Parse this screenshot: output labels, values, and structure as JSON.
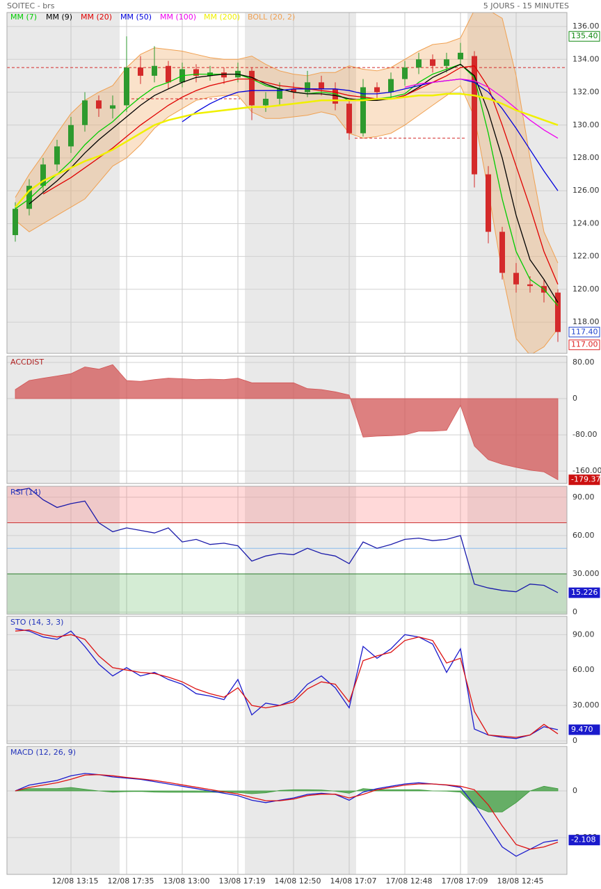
{
  "header": {
    "symbol": "SOITEC - brs",
    "period": "5 JOURS - 15 MINUTES"
  },
  "chart_data": [
    {
      "type": "candlestick",
      "categories": [
        null,
        null,
        null,
        null,
        "12/08 13:15",
        null,
        null,
        null,
        "12/08 17:35",
        null,
        null,
        null,
        "13/08 13:00",
        null,
        null,
        null,
        "13/08 17:19",
        null,
        null,
        null,
        "14/08 12:50",
        null,
        null,
        null,
        "14/08 17:07",
        null,
        null,
        null,
        "17/08 12:48",
        null,
        null,
        null,
        "17/08 17:09",
        null,
        null,
        null,
        "18/08 12:45",
        null,
        null,
        null
      ],
      "open": [
        123.3,
        124.9,
        126.3,
        127.6,
        128.7,
        130.0,
        131.5,
        131.0,
        131.2,
        133.5,
        133.0,
        133.6,
        132.6,
        133.4,
        133.0,
        133.2,
        132.9,
        133.3,
        131.2,
        131.6,
        132.2,
        132.0,
        132.6,
        132.2,
        131.3,
        129.5,
        132.3,
        132.0,
        132.8,
        133.5,
        134.0,
        133.6,
        134.0,
        134.2,
        127.0,
        123.5,
        121.0,
        120.3,
        120.2,
        119.8
      ],
      "high": [
        125.3,
        126.7,
        128.0,
        129.1,
        130.5,
        132.0,
        131.8,
        131.8,
        135.4,
        134.2,
        134.8,
        133.9,
        133.8,
        133.7,
        133.6,
        133.5,
        133.8,
        133.5,
        132.0,
        132.6,
        132.6,
        133.3,
        133.0,
        132.6,
        131.5,
        132.8,
        132.6,
        133.2,
        133.9,
        134.4,
        134.3,
        134.4,
        135.0,
        134.5,
        127.5,
        123.8,
        121.6,
        120.8,
        120.6,
        120.0
      ],
      "low": [
        122.9,
        124.5,
        125.9,
        127.2,
        128.3,
        129.6,
        130.5,
        130.4,
        130.8,
        132.5,
        132.6,
        132.2,
        132.3,
        132.6,
        132.7,
        132.5,
        132.6,
        130.3,
        130.8,
        131.2,
        131.6,
        131.7,
        131.8,
        130.9,
        129.1,
        129.3,
        131.5,
        131.6,
        132.4,
        133.1,
        133.2,
        133.2,
        133.6,
        126.2,
        122.8,
        120.6,
        119.8,
        119.8,
        119.2,
        116.8
      ],
      "close": [
        124.9,
        126.3,
        127.6,
        128.7,
        130.0,
        131.5,
        131.0,
        131.2,
        133.5,
        133.0,
        133.6,
        132.6,
        133.4,
        133.0,
        133.2,
        132.9,
        133.3,
        131.2,
        131.6,
        132.2,
        132.0,
        132.6,
        132.2,
        131.3,
        129.5,
        132.3,
        132.0,
        132.8,
        133.5,
        134.0,
        133.6,
        134.0,
        134.4,
        127.0,
        123.5,
        121.0,
        120.3,
        120.2,
        119.8,
        117.4
      ],
      "up_color": "#2e9a2e",
      "down_color": "#d42a2a",
      "bands": {
        "name": "BOLL (20, 2)",
        "color": "#f0a050",
        "upper": [
          125.6,
          127,
          128.2,
          129.5,
          130.7,
          131.5,
          132,
          132.4,
          133.5,
          134.3,
          134.7,
          134.6,
          134.5,
          134.3,
          134.1,
          134.0,
          134.0,
          134.2,
          133.7,
          133.3,
          133.1,
          133.0,
          133.2,
          133.2,
          133.6,
          133.4,
          133.3,
          133.5,
          134.0,
          134.5,
          134.9,
          135.0,
          135.3,
          137,
          137,
          136.5,
          133,
          128,
          123.5,
          121.6
        ],
        "lower": [
          124.2,
          123.5,
          124,
          124.5,
          125,
          125.5,
          126.5,
          127.5,
          128,
          128.8,
          129.8,
          130.5,
          131.0,
          131.5,
          131.7,
          131.8,
          131.8,
          130.8,
          130.4,
          130.4,
          130.5,
          130.6,
          130.8,
          130.6,
          129.5,
          129.2,
          129.3,
          129.5,
          130.0,
          130.6,
          131.2,
          131.8,
          132.4,
          130.5,
          126,
          121,
          117,
          116,
          116.5,
          117.6
        ]
      },
      "series": [
        {
          "name": "MM (7)",
          "color": "#00cc00",
          "values": [
            124.9,
            125.5,
            126.3,
            127.0,
            127.8,
            128.8,
            129.6,
            130.2,
            131.0,
            131.7,
            132.3,
            132.6,
            133.0,
            133.1,
            133.1,
            133.1,
            133.1,
            132.8,
            132.4,
            132.2,
            132.0,
            131.9,
            132.0,
            131.9,
            131.5,
            131.6,
            131.6,
            131.7,
            131.9,
            132.6,
            133.1,
            133.4,
            133.7,
            132.9,
            129.5,
            125.5,
            122.3,
            120.6,
            120.0,
            119.0
          ]
        },
        {
          "name": "MM (9)",
          "color": "#000000",
          "values": [
            null,
            125.2,
            125.9,
            126.6,
            127.4,
            128.3,
            129.1,
            129.8,
            130.5,
            131.2,
            131.8,
            132.2,
            132.6,
            132.9,
            133.0,
            133.1,
            133.1,
            132.9,
            132.5,
            132.2,
            132.0,
            131.9,
            131.9,
            131.8,
            131.6,
            131.5,
            131.5,
            131.6,
            131.8,
            132.3,
            132.9,
            133.3,
            133.7,
            133.0,
            130.8,
            128.0,
            124.5,
            121.8,
            120.6,
            119.2
          ]
        },
        {
          "name": "MM (20)",
          "color": "#e00000",
          "values": [
            null,
            null,
            125.8,
            126.3,
            126.8,
            127.4,
            128.0,
            128.6,
            129.3,
            130.0,
            130.6,
            131.2,
            131.7,
            132.1,
            132.4,
            132.6,
            132.8,
            132.8,
            132.6,
            132.4,
            132.3,
            132.2,
            132.1,
            132.0,
            131.8,
            131.7,
            131.6,
            131.6,
            131.8,
            132.2,
            132.6,
            133.0,
            133.5,
            133.6,
            132.3,
            130.0,
            127.5,
            125.0,
            122.3,
            120.3
          ]
        },
        {
          "name": "MM (50)",
          "color": "#0000dd",
          "values": [
            null,
            null,
            null,
            null,
            null,
            null,
            null,
            null,
            null,
            null,
            null,
            null,
            130.2,
            130.8,
            131.3,
            131.7,
            132.0,
            132.1,
            132.1,
            132.1,
            132.2,
            132.2,
            132.2,
            132.2,
            132.1,
            131.9,
            131.9,
            132.0,
            132.2,
            132.4,
            132.6,
            132.7,
            132.8,
            132.6,
            132.0,
            131.0,
            129.8,
            128.5,
            127.2,
            126.0
          ]
        },
        {
          "name": "MM (100)",
          "color": "#ee00ee",
          "values": [
            null,
            null,
            null,
            null,
            null,
            null,
            null,
            null,
            null,
            null,
            null,
            null,
            null,
            null,
            null,
            null,
            null,
            null,
            null,
            null,
            null,
            null,
            null,
            null,
            null,
            null,
            null,
            null,
            132.3,
            132.5,
            132.6,
            132.7,
            132.8,
            132.7,
            132.3,
            131.7,
            131.0,
            130.3,
            129.7,
            129.2
          ]
        },
        {
          "name": "MM (200)",
          "color": "#f0f000",
          "values": [
            125.0,
            126.0,
            126.6,
            127.0,
            127.4,
            127.8,
            128.1,
            128.5,
            129.0,
            129.5,
            130.0,
            130.3,
            130.5,
            130.7,
            130.8,
            130.9,
            131.0,
            131.1,
            131.1,
            131.2,
            131.3,
            131.4,
            131.5,
            131.5,
            131.5,
            131.5,
            131.6,
            131.6,
            131.7,
            131.8,
            131.8,
            131.9,
            131.9,
            131.8,
            131.6,
            131.3,
            130.9,
            130.6,
            130.3,
            130.0
          ]
        }
      ],
      "levels": [
        133.5,
        131.6,
        129.2
      ],
      "ylim": [
        116.1,
        136.85
      ],
      "yticks": [
        {
          "value": 118,
          "label": "118.00"
        },
        {
          "value": 120,
          "label": "120.00"
        },
        {
          "value": 122,
          "label": "122.00"
        },
        {
          "value": 124,
          "label": "124.00"
        },
        {
          "value": 126,
          "label": "126.00"
        },
        {
          "value": 128,
          "label": "128.00"
        },
        {
          "value": 130,
          "label": "130.00"
        },
        {
          "value": 132,
          "label": "132.00"
        },
        {
          "value": 134,
          "label": "134.00"
        },
        {
          "value": 136,
          "label": "136.00"
        }
      ],
      "last_labels": [
        {
          "value": 135.4,
          "label": "135.40",
          "color": "#118811",
          "style": "outline"
        },
        {
          "value": 117.4,
          "label": "117.40",
          "color": "#2244cc",
          "style": "outline"
        },
        {
          "value": 117,
          "label": "117.00",
          "color": "#dd2222",
          "style": "outline"
        }
      ]
    },
    {
      "type": "area",
      "title": "ACCDIST",
      "title_color": "#b02020",
      "color": "#d25555",
      "values": [
        20,
        40,
        45,
        50,
        55,
        70,
        65,
        75,
        40,
        38,
        42,
        45,
        44,
        42,
        43,
        42,
        45,
        35,
        35,
        35,
        35,
        22,
        20,
        15,
        8,
        -85,
        -83,
        -82,
        -80,
        -72,
        -72,
        -70,
        -15,
        -105,
        -135,
        -145,
        -152,
        -158,
        -162,
        -179.37
      ],
      "ylim": [
        -187.5,
        93.8
      ],
      "yticks": [
        {
          "value": 80,
          "label": "80.00"
        },
        0,
        {
          "value": -80,
          "label": "-80.00"
        },
        {
          "value": -160,
          "label": "-160.00"
        }
      ],
      "last_labels": [
        {
          "value": -179.37,
          "label": "-179.37",
          "color": "#cc1111",
          "style": "fill"
        }
      ]
    },
    {
      "type": "oscillator",
      "title": "RSI (14)",
      "title_color": "#2233bb",
      "zones": {
        "overbought": 70,
        "oversold": 30,
        "midline": 50
      },
      "series": [
        {
          "color": "#1a1aaa",
          "values": [
            95,
            97,
            88,
            82,
            85,
            87,
            70,
            63,
            66,
            64,
            62,
            66,
            55,
            57,
            53,
            54,
            52,
            40,
            44,
            46,
            45,
            50,
            46,
            44,
            38,
            55,
            50,
            53,
            57,
            58,
            56,
            57,
            60,
            22,
            19,
            17,
            16,
            22,
            21,
            15.226
          ]
        }
      ],
      "ylim": [
        -1.6,
        98.6
      ],
      "yticks": [
        {
          "value": 90,
          "label": "90.00"
        },
        {
          "value": 60,
          "label": "60.00"
        },
        {
          "value": 30,
          "label": "30.000"
        },
        0
      ],
      "last_labels": [
        {
          "value": 15.226,
          "label": "15.226",
          "color": "#1a1acc",
          "style": "fill"
        }
      ]
    },
    {
      "type": "oscillator",
      "title": "STO (14, 3, 3)",
      "title_color": "#2233bb",
      "series": [
        {
          "color": "#1a1acc",
          "values": [
            95,
            93,
            88,
            86,
            93,
            80,
            65,
            55,
            62,
            55,
            58,
            52,
            48,
            40,
            38,
            35,
            52,
            22,
            32,
            30,
            35,
            48,
            55,
            45,
            28,
            80,
            70,
            78,
            90,
            88,
            82,
            58,
            78,
            10,
            5,
            3,
            2,
            5,
            12,
            9.47
          ]
        },
        {
          "color": "#dd1111",
          "values": [
            93,
            94,
            90,
            88,
            90,
            86,
            72,
            62,
            60,
            58,
            57,
            54,
            50,
            44,
            40,
            37,
            45,
            30,
            28,
            30,
            33,
            44,
            50,
            48,
            33,
            68,
            72,
            75,
            85,
            88,
            85,
            66,
            70,
            25,
            5,
            4,
            3,
            5,
            14,
            6
          ]
        }
      ],
      "ylim": [
        -2.3,
        105.5
      ],
      "yticks": [
        {
          "value": 90,
          "label": "90.00"
        },
        {
          "value": 60,
          "label": "60.00"
        },
        {
          "value": 30,
          "label": "30.000"
        },
        0
      ],
      "last_labels": [
        {
          "value": 9.47,
          "label": "9.470",
          "color": "#1a1acc",
          "style": "fill"
        }
      ]
    },
    {
      "type": "macd",
      "title": "MACD (12, 26, 9)",
      "title_color": "#2233bb",
      "histogram": {
        "color": "#3a9a3a",
        "values": [
          0,
          0.1,
          0.1,
          0.1,
          0.15,
          0.07,
          0,
          -0.05,
          -0.03,
          -0.02,
          -0.05,
          -0.06,
          -0.06,
          -0.06,
          -0.06,
          -0.06,
          -0.07,
          -0.12,
          -0.08,
          0.02,
          0.05,
          0.05,
          0.04,
          -0.01,
          -0.1,
          0.1,
          0.05,
          0.05,
          0.05,
          0.05,
          0,
          -0.01,
          -0.05,
          -0.65,
          -0.9,
          -0.9,
          -0.5,
          0,
          0.2,
          0.1
        ]
      },
      "series": [
        {
          "color": "#1a1acc",
          "values": [
            0,
            0.25,
            0.35,
            0.45,
            0.65,
            0.75,
            0.7,
            0.6,
            0.55,
            0.5,
            0.4,
            0.3,
            0.2,
            0.1,
            0,
            -0.1,
            -0.2,
            -0.4,
            -0.5,
            -0.4,
            -0.3,
            -0.15,
            -0.1,
            -0.15,
            -0.4,
            -0.05,
            0.1,
            0.2,
            0.3,
            0.35,
            0.3,
            0.25,
            0.15,
            -0.6,
            -1.5,
            -2.4,
            -2.8,
            -2.5,
            -2.2,
            -2.108
          ]
        },
        {
          "color": "#dd1111",
          "values": [
            0,
            0.15,
            0.25,
            0.35,
            0.5,
            0.68,
            0.7,
            0.65,
            0.58,
            0.52,
            0.45,
            0.36,
            0.26,
            0.16,
            0.06,
            -0.04,
            -0.13,
            -0.28,
            -0.42,
            -0.42,
            -0.35,
            -0.2,
            -0.14,
            -0.14,
            -0.3,
            -0.15,
            0.05,
            0.15,
            0.25,
            0.3,
            0.3,
            0.26,
            0.2,
            0.05,
            -0.6,
            -1.5,
            -2.3,
            -2.5,
            -2.4,
            -2.2
          ]
        }
      ],
      "ylim": [
        -3.58,
        1.91
      ],
      "yticks": [
        0,
        {
          "value": -2,
          "label": "-2.000"
        }
      ],
      "last_labels": [
        {
          "value": -2.108,
          "label": "-2.108",
          "color": "#1a1acc",
          "style": "fill"
        }
      ]
    }
  ]
}
